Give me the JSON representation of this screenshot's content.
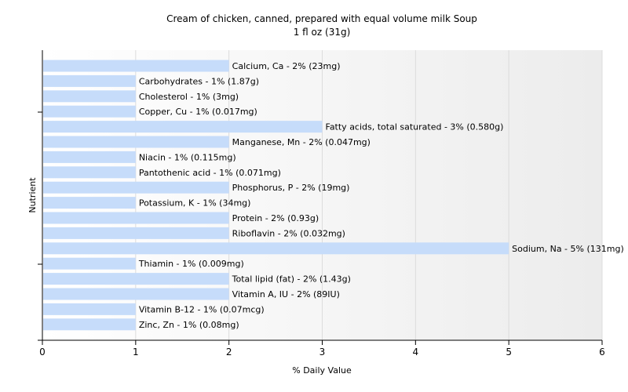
{
  "chart_data": {
    "type": "bar",
    "orientation": "horizontal",
    "title": "Cream of chicken, canned, prepared with equal volume milk Soup",
    "subtitle": "1 fl oz (31g)",
    "xlabel": "% Daily Value",
    "ylabel": "Nutrient",
    "xlim": [
      0,
      6
    ],
    "xticks": [
      "0",
      "1",
      "2",
      "3",
      "4",
      "5",
      "6"
    ],
    "grid": true,
    "bar_color": "#c6dcfa",
    "categories": [
      "Calcium, Ca",
      "Carbohydrates",
      "Cholesterol",
      "Copper, Cu",
      "Fatty acids, total saturated",
      "Manganese, Mn",
      "Niacin",
      "Pantothenic acid",
      "Phosphorus, P",
      "Potassium, K",
      "Protein",
      "Riboflavin",
      "Sodium, Na",
      "Thiamin",
      "Total lipid (fat)",
      "Vitamin A, IU",
      "Vitamin B-12",
      "Zinc, Zn"
    ],
    "values": [
      2,
      1,
      1,
      1,
      3,
      2,
      1,
      1,
      2,
      1,
      2,
      2,
      5,
      1,
      2,
      2,
      1,
      1
    ],
    "labels": [
      "Calcium, Ca - 2% (23mg)",
      "Carbohydrates - 1% (1.87g)",
      "Cholesterol - 1% (3mg)",
      "Copper, Cu - 1% (0.017mg)",
      "Fatty acids, total saturated - 3% (0.580g)",
      "Manganese, Mn - 2% (0.047mg)",
      "Niacin - 1% (0.115mg)",
      "Pantothenic acid - 1% (0.071mg)",
      "Phosphorus, P - 2% (19mg)",
      "Potassium, K - 1% (34mg)",
      "Protein - 2% (0.93g)",
      "Riboflavin - 2% (0.032mg)",
      "Sodium, Na - 5% (131mg)",
      "Thiamin - 1% (0.009mg)",
      "Total lipid (fat) - 2% (1.43g)",
      "Vitamin A, IU - 2% (89IU)",
      "Vitamin B-12 - 1% (0.07mcg)",
      "Zinc, Zn - 1% (0.08mg)"
    ]
  }
}
